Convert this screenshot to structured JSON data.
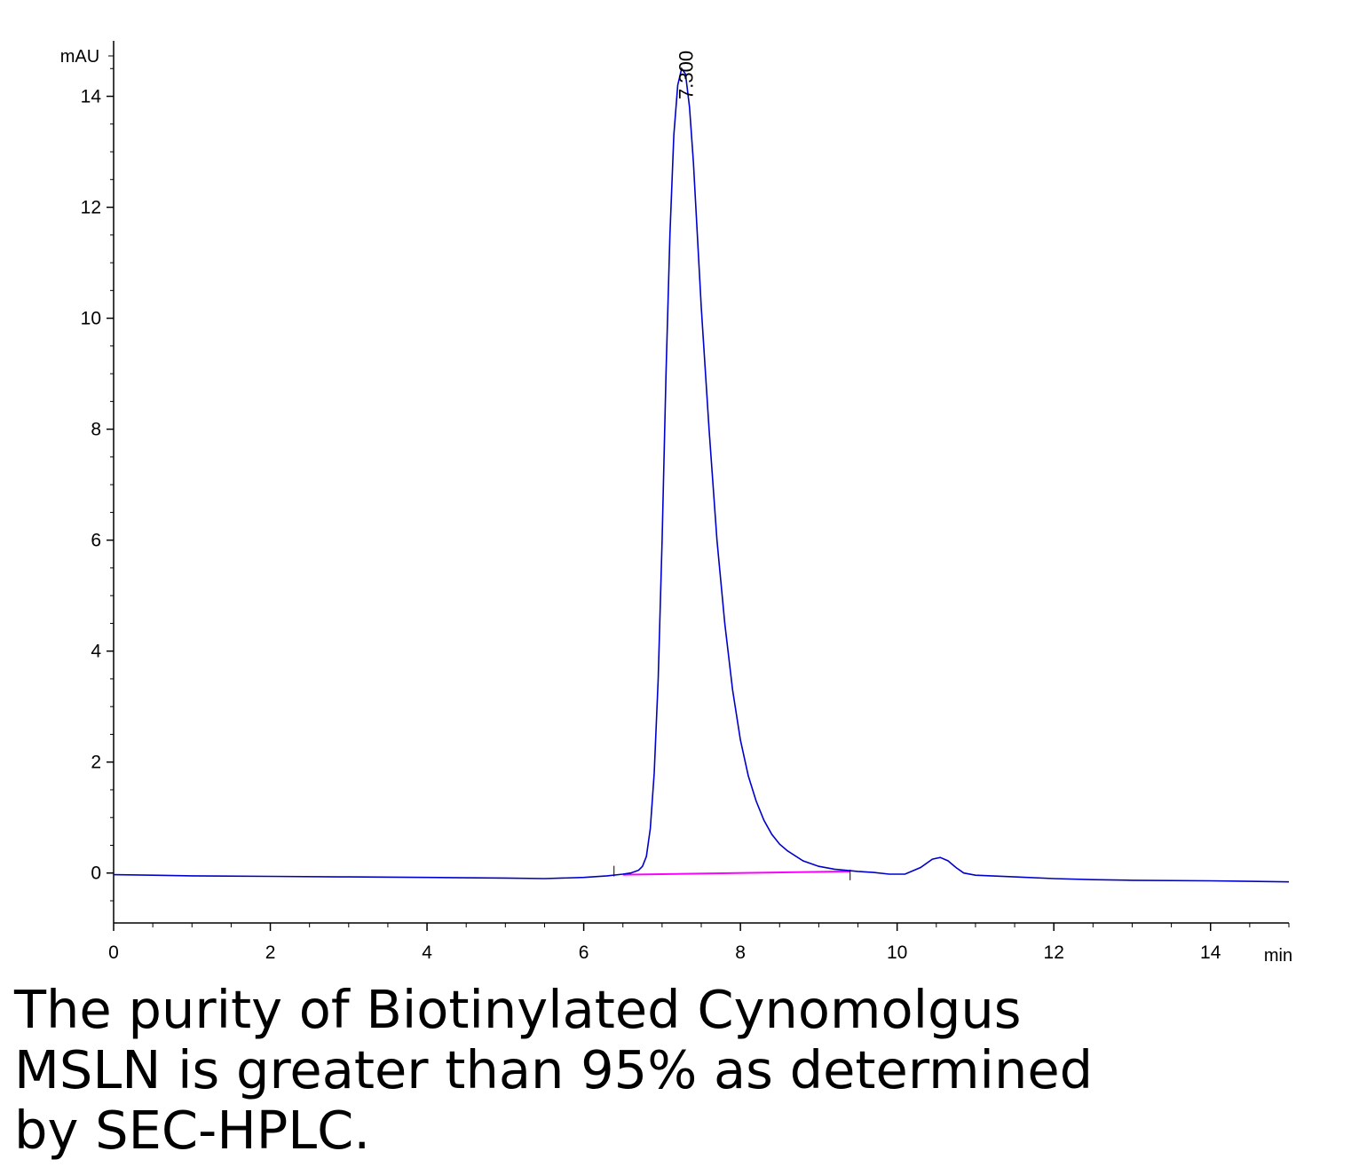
{
  "chart_data": {
    "type": "line",
    "ylabel": "mAU",
    "xlabel": "min",
    "xlim": [
      0,
      15
    ],
    "ylim": [
      -0.9,
      15.0
    ],
    "x_ticks": [
      0,
      2,
      4,
      6,
      8,
      10,
      12,
      14
    ],
    "y_ticks": [
      0,
      2,
      4,
      6,
      8,
      10,
      12,
      14
    ],
    "peak_label": "7.300",
    "colors": {
      "trace": "#0000cc",
      "baseline": "#ff00ff",
      "axis": "#000000"
    },
    "series": [
      {
        "x": [
          0.0,
          0.5,
          1.0,
          2.0,
          3.0,
          4.0,
          5.0,
          5.5,
          6.0,
          6.3,
          6.5,
          6.6,
          6.7,
          6.75,
          6.8,
          6.85,
          6.9,
          6.95,
          7.0,
          7.05,
          7.1,
          7.15,
          7.2,
          7.25,
          7.3,
          7.35,
          7.4,
          7.45,
          7.5,
          7.6,
          7.7,
          7.8,
          7.9,
          8.0,
          8.1,
          8.2,
          8.3,
          8.4,
          8.5,
          8.6,
          8.8,
          9.0,
          9.2,
          9.5,
          9.7,
          9.9,
          10.1,
          10.3,
          10.45,
          10.55,
          10.65,
          10.75,
          10.85,
          11.0,
          11.2,
          11.5,
          12.0,
          12.5,
          13.0,
          14.0,
          14.5,
          15.0
        ],
        "y": [
          -0.03,
          -0.04,
          -0.05,
          -0.06,
          -0.07,
          -0.08,
          -0.09,
          -0.1,
          -0.08,
          -0.05,
          -0.02,
          0.0,
          0.05,
          0.12,
          0.3,
          0.8,
          1.8,
          3.5,
          6.0,
          9.0,
          11.5,
          13.3,
          14.2,
          14.5,
          14.4,
          13.8,
          12.8,
          11.5,
          10.2,
          8.0,
          6.0,
          4.5,
          3.3,
          2.4,
          1.75,
          1.3,
          0.95,
          0.7,
          0.52,
          0.4,
          0.22,
          0.12,
          0.07,
          0.03,
          0.01,
          -0.02,
          -0.02,
          0.1,
          0.25,
          0.28,
          0.22,
          0.1,
          0.0,
          -0.04,
          -0.05,
          -0.07,
          -0.1,
          -0.12,
          -0.13,
          -0.14,
          -0.15,
          -0.16
        ]
      }
    ],
    "integration_baseline": {
      "x": [
        6.5,
        9.4
      ],
      "y": [
        -0.03,
        0.03
      ]
    }
  },
  "caption": "The purity of Biotinylated Cynomolgus MSLN is greater than 95% as determined by SEC-HPLC."
}
